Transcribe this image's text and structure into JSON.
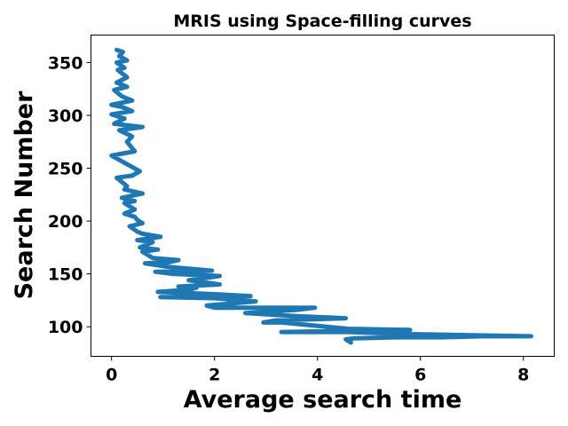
{
  "chart_data": {
    "type": "line",
    "title": "MRIS using Space-filling curves",
    "xlabel": "Average search time",
    "ylabel": "Search Number",
    "xlim": [
      -0.4,
      8.6
    ],
    "ylim": [
      72,
      376
    ],
    "xticks": [
      0,
      2,
      4,
      6,
      8
    ],
    "yticks": [
      100,
      150,
      200,
      250,
      300,
      350
    ],
    "grid": false,
    "series": [
      {
        "color": "#1f77b4",
        "x": [
          4.65,
          4.55,
          4.7,
          5.5,
          6.4,
          7.2,
          8.15,
          7.0,
          5.8,
          4.6,
          3.3,
          4.5,
          5.8,
          4.6,
          3.3,
          2.95,
          3.2,
          4.55,
          3.6,
          2.6,
          3.6,
          3.95,
          3.1,
          2.0,
          1.85,
          2.8,
          2.0,
          0.95,
          1.5,
          2.7,
          1.9,
          0.9,
          1.5,
          1.65,
          1.3,
          2.1,
          1.5,
          2.1,
          1.2,
          0.85,
          1.95,
          1.25,
          1.05,
          0.65,
          1.1,
          1.3,
          0.8,
          0.6,
          0.9,
          0.55,
          0.8,
          0.5,
          0.95,
          0.6,
          0.5,
          0.35,
          0.6,
          0.5,
          0.45,
          0.25,
          0.45,
          0.25,
          0.45,
          0.2,
          0.6,
          0.25,
          0.3,
          0.1,
          0.4,
          0.55,
          0.0,
          0.45,
          0.3,
          0.4,
          0.15,
          0.6,
          0.05,
          0.25,
          0.0,
          0.4,
          0.2,
          0.0,
          0.4,
          0.2,
          0.05,
          0.3,
          0.1,
          0.3,
          0.12,
          0.25,
          0.1,
          0.3,
          0.15,
          0.22,
          0.1
        ],
        "y": [
          85,
          88,
          89,
          90,
          90,
          91,
          91,
          92,
          93,
          95,
          95,
          96,
          97,
          98,
          104,
          104,
          106,
          108,
          110,
          113,
          116,
          118,
          118,
          118,
          120,
          124,
          127,
          128,
          128,
          129,
          131,
          133,
          135,
          137,
          138,
          140,
          144,
          148,
          150,
          152,
          153,
          156,
          157,
          160,
          161,
          163,
          165,
          171,
          173,
          175,
          180,
          182,
          185,
          188,
          190,
          195,
          198,
          201,
          204,
          207,
          211,
          217,
          219,
          222,
          226,
          230,
          233,
          241,
          243,
          247,
          262,
          266,
          275,
          280,
          286,
          289,
          292,
          297,
          301,
          304,
          308,
          310,
          314,
          318,
          324,
          327,
          331,
          336,
          343,
          345,
          350,
          352,
          356,
          360,
          362
        ]
      }
    ]
  }
}
